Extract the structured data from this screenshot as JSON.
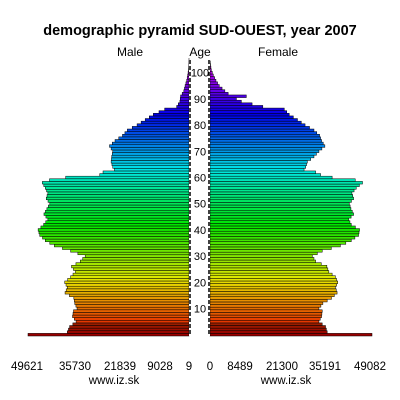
{
  "chart_data": {
    "type": "bar",
    "orientation": "horizontal-pyramid",
    "title": "demographic pyramid SUD-OUEST, year 2007",
    "center_label": "Age",
    "series": [
      {
        "name": "Male"
      },
      {
        "name": "Female"
      }
    ],
    "age_min": 0,
    "age_max": 105,
    "age_ticks": [
      10,
      20,
      30,
      40,
      50,
      60,
      70,
      80,
      90,
      100
    ],
    "male_axis_ticks": [
      "49621",
      "35730",
      "21839",
      "9028",
      "9"
    ],
    "female_axis_ticks": [
      "0",
      "8489",
      "21300",
      "35191",
      "49082"
    ],
    "male_max": 49621,
    "female_max": 49082,
    "source_labels": [
      "www.iz.sk",
      "www.iz.sk"
    ],
    "male_anchors": [
      [
        0,
        49621
      ],
      [
        1,
        37500
      ],
      [
        3,
        36800
      ],
      [
        5,
        34800
      ],
      [
        7,
        35900
      ],
      [
        9,
        35600
      ],
      [
        10,
        34500
      ],
      [
        12,
        35200
      ],
      [
        14,
        35500
      ],
      [
        16,
        38200
      ],
      [
        18,
        37500
      ],
      [
        20,
        38300
      ],
      [
        22,
        36500
      ],
      [
        24,
        35000
      ],
      [
        26,
        36200
      ],
      [
        28,
        33500
      ],
      [
        30,
        32000
      ],
      [
        32,
        36500
      ],
      [
        34,
        41500
      ],
      [
        36,
        44300
      ],
      [
        38,
        46000
      ],
      [
        40,
        46500
      ],
      [
        42,
        44800
      ],
      [
        44,
        43500
      ],
      [
        46,
        44700
      ],
      [
        48,
        43800
      ],
      [
        50,
        42900
      ],
      [
        52,
        44000
      ],
      [
        54,
        43500
      ],
      [
        56,
        44300
      ],
      [
        58,
        45200
      ],
      [
        59,
        43000
      ],
      [
        60,
        38000
      ],
      [
        61,
        27500
      ],
      [
        62,
        26500
      ],
      [
        63,
        23000
      ],
      [
        64,
        23500
      ],
      [
        66,
        24000
      ],
      [
        68,
        23800
      ],
      [
        70,
        23500
      ],
      [
        72,
        24500
      ],
      [
        74,
        22800
      ],
      [
        76,
        20500
      ],
      [
        78,
        19000
      ],
      [
        80,
        16000
      ],
      [
        82,
        13500
      ],
      [
        84,
        11000
      ],
      [
        86,
        7500
      ],
      [
        87,
        3800
      ],
      [
        89,
        2800
      ],
      [
        91,
        2600
      ],
      [
        93,
        1600
      ],
      [
        95,
        1200
      ],
      [
        97,
        700
      ],
      [
        99,
        400
      ],
      [
        101,
        150
      ],
      [
        103,
        50
      ],
      [
        105,
        9
      ]
    ],
    "female_anchors": [
      [
        0,
        49082
      ],
      [
        1,
        35500
      ],
      [
        3,
        35000
      ],
      [
        5,
        33000
      ],
      [
        7,
        33800
      ],
      [
        9,
        34000
      ],
      [
        10,
        33000
      ],
      [
        12,
        34200
      ],
      [
        14,
        36800
      ],
      [
        16,
        38500
      ],
      [
        18,
        38000
      ],
      [
        20,
        38700
      ],
      [
        22,
        38000
      ],
      [
        24,
        36000
      ],
      [
        26,
        35400
      ],
      [
        28,
        32000
      ],
      [
        30,
        31000
      ],
      [
        32,
        34000
      ],
      [
        34,
        39500
      ],
      [
        36,
        42800
      ],
      [
        38,
        45000
      ],
      [
        40,
        45300
      ],
      [
        42,
        42800
      ],
      [
        44,
        42000
      ],
      [
        46,
        43500
      ],
      [
        48,
        42700
      ],
      [
        50,
        42200
      ],
      [
        52,
        43500
      ],
      [
        54,
        43000
      ],
      [
        56,
        44300
      ],
      [
        58,
        46200
      ],
      [
        59,
        44000
      ],
      [
        60,
        37000
      ],
      [
        61,
        33500
      ],
      [
        62,
        32000
      ],
      [
        63,
        28500
      ],
      [
        64,
        29000
      ],
      [
        66,
        29500
      ],
      [
        68,
        31500
      ],
      [
        70,
        33000
      ],
      [
        72,
        34800
      ],
      [
        74,
        33800
      ],
      [
        76,
        33200
      ],
      [
        78,
        31500
      ],
      [
        80,
        28800
      ],
      [
        82,
        26500
      ],
      [
        84,
        24000
      ],
      [
        86,
        22500
      ],
      [
        87,
        16000
      ],
      [
        89,
        9500
      ],
      [
        90,
        8000
      ],
      [
        91,
        11000
      ],
      [
        92,
        5500
      ],
      [
        93,
        4500
      ],
      [
        95,
        2800
      ],
      [
        97,
        1800
      ],
      [
        99,
        1000
      ],
      [
        101,
        400
      ],
      [
        103,
        150
      ],
      [
        105,
        0
      ]
    ]
  }
}
